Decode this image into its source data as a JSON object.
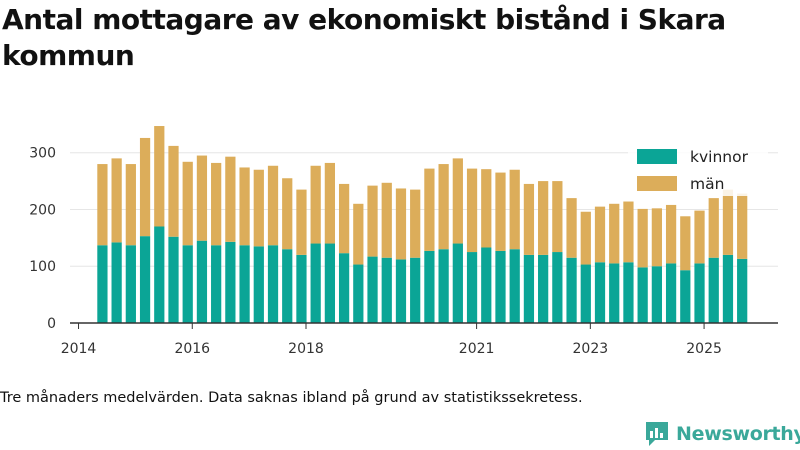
{
  "title": "Antal mottagare av ekonomiskt bistånd i Skara kommun",
  "footnote": "Tre månaders medelvärden. Data saknas ibland på grund av statistikssekretess.",
  "brand": {
    "name": "Newsworthy",
    "color": "#3aa89a"
  },
  "colors": {
    "kvinnor": "#0ba596",
    "man": "#dcad5a",
    "axis": "#333333",
    "grid": "#e6e6e6"
  },
  "chart_data": {
    "type": "bar",
    "stacked": true,
    "title": "Antal mottagare av ekonomiskt bistånd i Skara kommun",
    "xlabel": "",
    "ylabel": "",
    "ylim": [
      0,
      340
    ],
    "yticks": [
      0,
      100,
      200,
      300
    ],
    "xlim": [
      2013.85,
      2026.3
    ],
    "xticks": [
      2014,
      2016,
      2018,
      2021,
      2023,
      2025
    ],
    "legend_position": "top-right",
    "x": [
      2014.42,
      2014.67,
      2014.92,
      2015.17,
      2015.42,
      2015.67,
      2015.92,
      2016.17,
      2016.42,
      2016.67,
      2016.92,
      2017.17,
      2017.42,
      2017.67,
      2017.92,
      2018.17,
      2018.42,
      2018.67,
      2018.92,
      2019.17,
      2019.42,
      2019.67,
      2019.92,
      2020.17,
      2020.42,
      2020.67,
      2020.92,
      2021.17,
      2021.42,
      2021.67,
      2021.92,
      2022.17,
      2022.42,
      2022.67,
      2022.92,
      2023.17,
      2023.42,
      2023.67,
      2023.92,
      2024.17,
      2024.42,
      2024.67,
      2024.92,
      2025.17,
      2025.42,
      2025.67
    ],
    "series": [
      {
        "name": "kvinnor",
        "values": [
          137,
          142,
          137,
          153,
          170,
          152,
          137,
          145,
          137,
          143,
          137,
          135,
          137,
          130,
          120,
          140,
          140,
          123,
          103,
          117,
          115,
          112,
          115,
          127,
          130,
          140,
          125,
          133,
          127,
          130,
          120,
          120,
          125,
          115,
          103,
          107,
          105,
          107,
          98,
          100,
          105,
          93,
          105,
          115,
          120,
          113
        ]
      },
      {
        "name": "män",
        "values": [
          143,
          148,
          143,
          173,
          177,
          160,
          147,
          150,
          145,
          150,
          137,
          135,
          140,
          125,
          115,
          137,
          142,
          122,
          107,
          125,
          132,
          125,
          120,
          145,
          150,
          150,
          147,
          138,
          138,
          140,
          125,
          130,
          125,
          105,
          93,
          98,
          105,
          107,
          103,
          102,
          103,
          95,
          93,
          105,
          115,
          115
        ]
      }
    ]
  }
}
